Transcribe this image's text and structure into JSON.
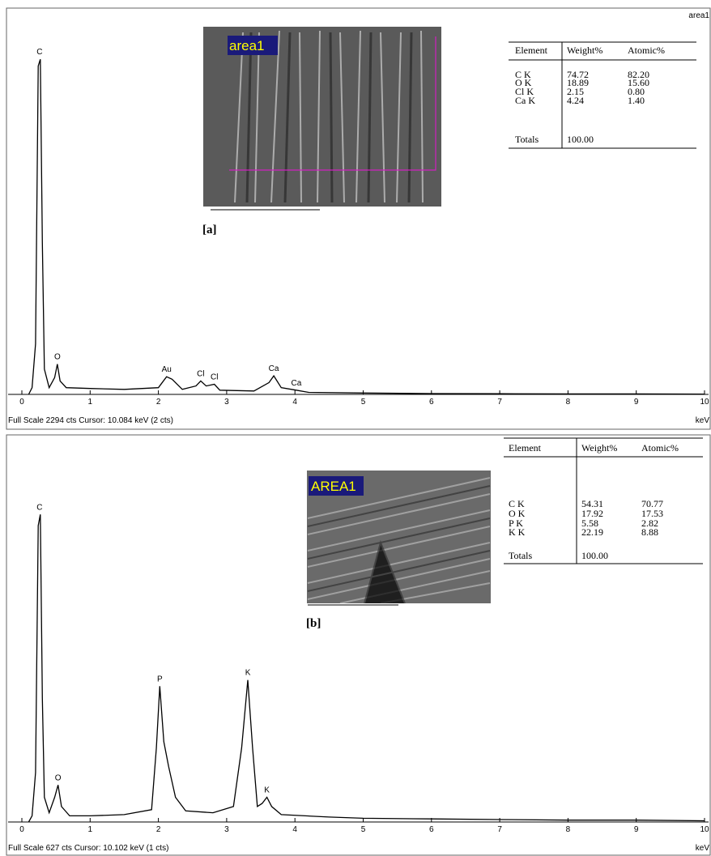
{
  "chart_data": [
    {
      "type": "line",
      "corner_label": "area1",
      "image_label": "area1",
      "panel_label": "[a]",
      "status": "Full Scale 2294 cts  Cursor: 10.084 keV (2 cts)",
      "xlabel": "keV",
      "color": "#000000",
      "xlim": [
        0,
        10
      ],
      "ylim": [
        0,
        2294
      ],
      "xticks": [
        0,
        1,
        2,
        3,
        4,
        5,
        6,
        7,
        8,
        9,
        10
      ],
      "x": [
        0.1,
        0.15,
        0.2,
        0.24,
        0.27,
        0.3,
        0.33,
        0.4,
        0.48,
        0.52,
        0.56,
        0.65,
        1,
        1.5,
        2.0,
        2.12,
        2.2,
        2.35,
        2.55,
        2.62,
        2.7,
        2.82,
        2.9,
        3.4,
        3.62,
        3.69,
        3.8,
        4.02,
        4.2,
        5,
        6,
        7,
        8,
        9,
        10
      ],
      "values": [
        0,
        40,
        300,
        1950,
        1990,
        900,
        150,
        40,
        100,
        180,
        80,
        40,
        35,
        30,
        40,
        105,
        90,
        30,
        50,
        80,
        50,
        60,
        25,
        20,
        70,
        110,
        40,
        25,
        12,
        8,
        5,
        4,
        3,
        3,
        2
      ],
      "peak_labels": [
        {
          "text": "C",
          "x": 0.26
        },
        {
          "text": "O",
          "x": 0.52
        },
        {
          "text": "Au",
          "x": 2.12
        },
        {
          "text": "Cl",
          "x": 2.62
        },
        {
          "text": "Cl",
          "x": 2.82
        },
        {
          "text": "Ca",
          "x": 3.69
        },
        {
          "text": "Ca",
          "x": 4.02
        }
      ],
      "table": {
        "header": [
          "Element",
          "Weight%",
          "Atomic%"
        ],
        "rows": [
          [
            "C K",
            "74.72",
            "82.20"
          ],
          [
            "O K",
            "18.89",
            "15.60"
          ],
          [
            "Cl K",
            "2.15",
            "0.80"
          ],
          [
            "Ca K",
            "4.24",
            "1.40"
          ]
        ],
        "totals": [
          "Totals",
          "100.00"
        ]
      }
    },
    {
      "type": "line",
      "image_label": "AREA1",
      "panel_label": "[b]",
      "status": "Full Scale 627 cts  Cursor: 10.102 keV (1 cts)",
      "xlabel": "keV",
      "color": "#000000",
      "xlim": [
        0,
        10
      ],
      "ylim": [
        0,
        627
      ],
      "xticks": [
        0,
        1,
        2,
        3,
        4,
        5,
        6,
        7,
        8,
        9,
        10
      ],
      "x": [
        0.1,
        0.15,
        0.2,
        0.24,
        0.27,
        0.3,
        0.33,
        0.4,
        0.48,
        0.53,
        0.58,
        0.7,
        1,
        1.5,
        1.9,
        1.97,
        2.02,
        2.08,
        2.15,
        2.25,
        2.4,
        2.8,
        3.1,
        3.22,
        3.31,
        3.38,
        3.45,
        3.52,
        3.59,
        3.66,
        3.8,
        4.5,
        5,
        6,
        7,
        8,
        9,
        10
      ],
      "values": [
        0,
        10,
        80,
        480,
        498,
        200,
        40,
        15,
        40,
        60,
        25,
        10,
        10,
        12,
        20,
        120,
        220,
        130,
        90,
        40,
        18,
        15,
        25,
        120,
        230,
        120,
        25,
        30,
        40,
        25,
        12,
        8,
        6,
        5,
        4,
        3,
        3,
        2
      ],
      "peak_labels": [
        {
          "text": "C",
          "x": 0.26
        },
        {
          "text": "O",
          "x": 0.53
        },
        {
          "text": "P",
          "x": 2.02
        },
        {
          "text": "K",
          "x": 3.31
        },
        {
          "text": "K",
          "x": 3.59
        }
      ],
      "table": {
        "header": [
          "Element",
          "Weight%",
          "Atomic%"
        ],
        "rows": [
          [
            "C K",
            "54.31",
            "70.77"
          ],
          [
            "O K",
            "17.92",
            "17.53"
          ],
          [
            "P K",
            "5.58",
            "2.82"
          ],
          [
            "K K",
            "22.19",
            "8.88"
          ]
        ],
        "totals": [
          "Totals",
          "100.00"
        ]
      }
    }
  ]
}
